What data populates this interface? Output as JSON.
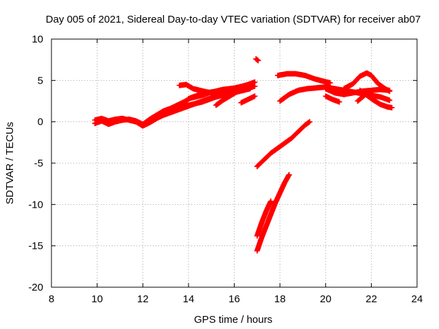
{
  "chart_data": {
    "type": "scatter",
    "title": "Day 005 of 2021, Sidereal Day-to-day VTEC variation (SDTVAR) for receiver ab07",
    "xlabel": "GPS time / hours",
    "ylabel": "SDTVAR / TECUs",
    "xlim": [
      8,
      24
    ],
    "ylim": [
      -20,
      10
    ],
    "xticks": [
      "8",
      "10",
      "12",
      "14",
      "16",
      "18",
      "20",
      "22",
      "24"
    ],
    "yticks": [
      "-20",
      "-15",
      "-10",
      "-5",
      "0",
      "5",
      "10"
    ],
    "grid": true,
    "marker_color": "#ff0000",
    "series": [
      {
        "x": [
          9.9,
          10.2,
          10.5,
          10.8,
          11.1,
          11.4,
          11.7,
          12.0,
          12.3,
          12.6,
          12.9,
          13.2,
          13.5,
          13.8,
          14.1,
          14.4,
          14.7,
          15.0,
          15.3,
          15.6,
          15.9,
          16.2,
          16.5,
          16.8
        ],
        "y": [
          -0.2,
          0.1,
          -0.3,
          0.0,
          0.2,
          0.3,
          0.1,
          -0.3,
          0.3,
          0.8,
          1.3,
          1.6,
          2.0,
          2.4,
          2.9,
          3.2,
          3.4,
          3.6,
          3.7,
          3.9,
          4.0,
          4.2,
          4.4,
          4.6
        ]
      },
      {
        "x": [
          9.9,
          10.2,
          10.5,
          10.8,
          11.1,
          11.4,
          11.7,
          12.0,
          12.3,
          12.6,
          12.9,
          13.2,
          13.5,
          13.8,
          14.1,
          14.4,
          14.7,
          15.0,
          15.3,
          15.6,
          15.9,
          16.2,
          16.5,
          16.8
        ],
        "y": [
          0.2,
          0.4,
          0.1,
          0.3,
          0.4,
          0.2,
          0.0,
          -0.5,
          -0.1,
          0.4,
          0.8,
          1.1,
          1.4,
          1.7,
          2.0,
          2.3,
          2.6,
          2.9,
          3.2,
          3.4,
          3.6,
          3.8,
          4.0,
          4.2
        ]
      },
      {
        "x": [
          12.5,
          12.8,
          13.1,
          13.4,
          13.7,
          14.0,
          14.3,
          14.6,
          14.9,
          15.2,
          15.5,
          15.8,
          16.1,
          16.4,
          16.7
        ],
        "y": [
          0.5,
          0.9,
          1.2,
          1.5,
          1.8,
          2.0,
          2.2,
          2.4,
          2.7,
          3.0,
          3.2,
          3.4,
          3.6,
          3.8,
          4.0
        ]
      },
      {
        "x": [
          13.6,
          13.9,
          14.2,
          14.5,
          14.8,
          15.1,
          15.4,
          15.7,
          16.0,
          16.3,
          16.6,
          16.9
        ],
        "y": [
          4.4,
          4.5,
          4.0,
          3.8,
          3.6,
          3.5,
          3.6,
          3.8,
          4.0,
          4.2,
          4.5,
          4.8
        ]
      },
      {
        "x": [
          14.0,
          14.3,
          14.6,
          14.9,
          15.2,
          15.5,
          15.8,
          16.1,
          16.4,
          16.7,
          16.9
        ],
        "y": [
          2.8,
          3.0,
          3.2,
          3.5,
          3.7,
          3.9,
          4.0,
          4.1,
          4.2,
          4.2,
          4.3
        ]
      },
      {
        "x": [
          15.2,
          15.5,
          15.8,
          16.1,
          16.4
        ],
        "y": [
          2.0,
          2.6,
          3.1,
          3.6,
          4.1
        ]
      },
      {
        "x": [
          16.3,
          16.6,
          16.9
        ],
        "y": [
          2.3,
          2.7,
          3.1
        ]
      },
      {
        "x": [
          16.95,
          17.05
        ],
        "y": [
          7.6,
          7.4
        ]
      },
      {
        "x": [
          17.0,
          17.3,
          17.6,
          17.9,
          18.2,
          18.5,
          18.8,
          19.1,
          19.3
        ],
        "y": [
          -5.4,
          -4.6,
          -3.8,
          -3.2,
          -2.6,
          -2.0,
          -1.2,
          -0.4,
          0.0
        ]
      },
      {
        "x": [
          17.0,
          17.2,
          17.4,
          17.6
        ],
        "y": [
          -13.8,
          -12.2,
          -10.8,
          -9.6
        ]
      },
      {
        "x": [
          17.0,
          17.2,
          17.4,
          17.6,
          17.8,
          18.0,
          18.2,
          18.4
        ],
        "y": [
          -15.6,
          -14.0,
          -12.6,
          -11.2,
          -9.8,
          -8.6,
          -7.4,
          -6.4
        ]
      },
      {
        "x": [
          17.9,
          18.3,
          18.7,
          19.1,
          19.5,
          19.9,
          20.2
        ],
        "y": [
          5.6,
          5.8,
          5.8,
          5.6,
          5.2,
          4.9,
          4.7
        ]
      },
      {
        "x": [
          18.0,
          18.4,
          18.8,
          19.2,
          19.6,
          20.0,
          20.4,
          20.8,
          21.2,
          21.6,
          22.0,
          22.4,
          22.8
        ],
        "y": [
          2.5,
          3.3,
          3.8,
          4.0,
          4.1,
          4.2,
          4.0,
          3.8,
          3.6,
          3.4,
          3.2,
          3.0,
          2.6
        ]
      },
      {
        "x": [
          20.0,
          20.4,
          20.8,
          21.2,
          21.6,
          22.0,
          22.4,
          22.8
        ],
        "y": [
          4.0,
          3.5,
          3.3,
          3.5,
          3.7,
          3.8,
          3.9,
          3.8
        ]
      },
      {
        "x": [
          20.8,
          21.2,
          21.5,
          21.8,
          22.0,
          22.3,
          22.6,
          22.8
        ],
        "y": [
          4.0,
          4.6,
          5.5,
          5.9,
          5.6,
          4.6,
          4.0,
          3.7
        ]
      },
      {
        "x": [
          20.0,
          20.3,
          20.6
        ],
        "y": [
          3.1,
          2.7,
          2.4
        ]
      },
      {
        "x": [
          21.5,
          21.8,
          22.1,
          22.4,
          22.7,
          22.9
        ],
        "y": [
          3.8,
          3.2,
          2.6,
          2.1,
          1.8,
          1.7
        ]
      },
      {
        "x": [
          21.4,
          21.7
        ],
        "y": [
          2.5,
          3.2
        ]
      }
    ]
  }
}
